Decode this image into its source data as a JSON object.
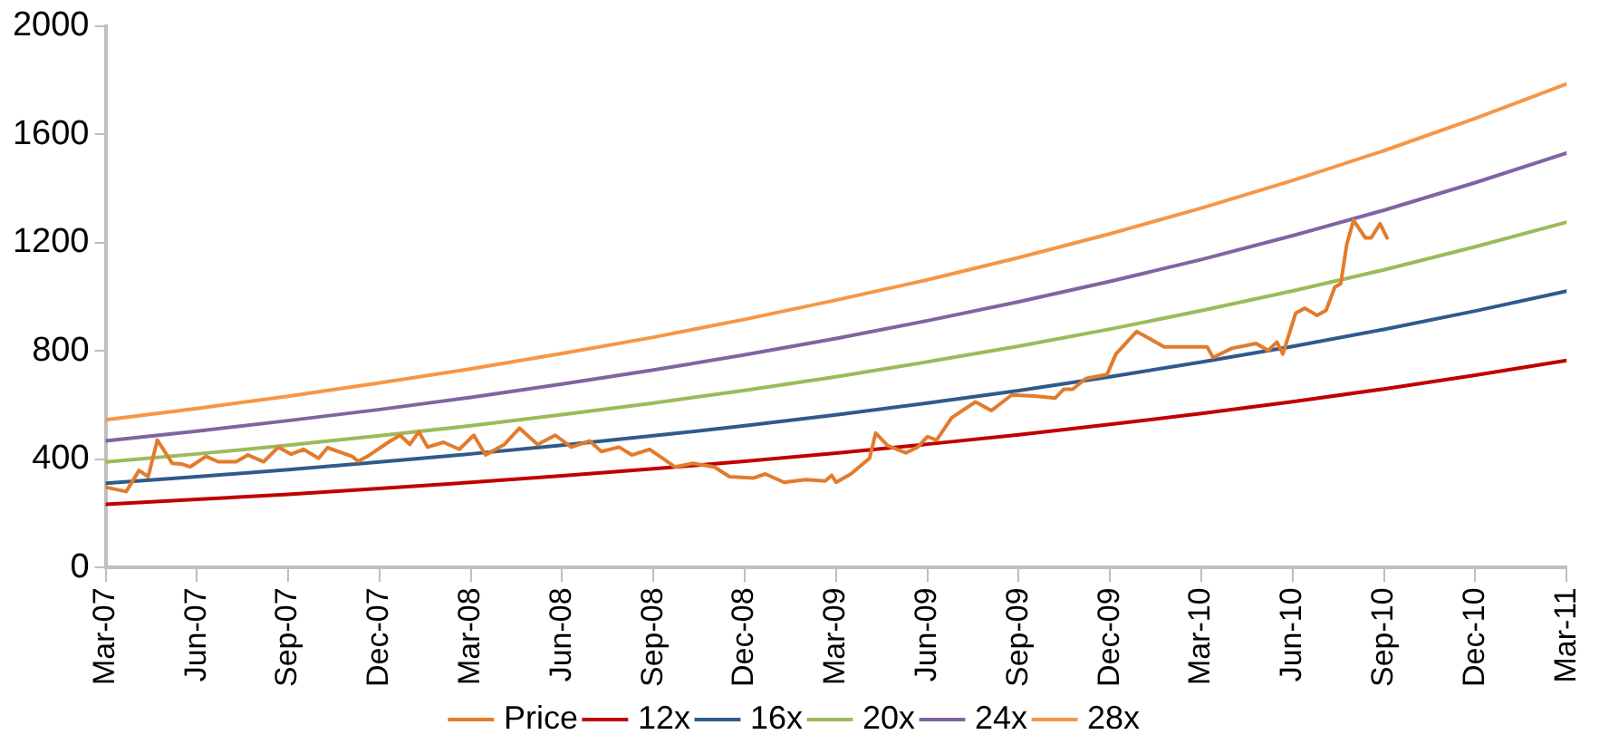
{
  "chart_data": {
    "type": "line",
    "grid": false,
    "legend": "bottom",
    "marker": "none",
    "line_style": "solid",
    "xlim": [
      "2007-03",
      "2011-03"
    ],
    "xticks": [
      {
        "value": "2007-03",
        "label": "Mar-07"
      },
      {
        "value": "2007-06",
        "label": "Jun-07"
      },
      {
        "value": "2007-09",
        "label": "Sep-07"
      },
      {
        "value": "2007-12",
        "label": "Dec-07"
      },
      {
        "value": "2008-03",
        "label": "Mar-08"
      },
      {
        "value": "2008-06",
        "label": "Jun-08"
      },
      {
        "value": "2008-09",
        "label": "Sep-08"
      },
      {
        "value": "2008-12",
        "label": "Dec-08"
      },
      {
        "value": "2009-03",
        "label": "Mar-09"
      },
      {
        "value": "2009-06",
        "label": "Jun-09"
      },
      {
        "value": "2009-09",
        "label": "Sep-09"
      },
      {
        "value": "2009-12",
        "label": "Dec-09"
      },
      {
        "value": "2010-03",
        "label": "Mar-10"
      },
      {
        "value": "2010-06",
        "label": "Jun-10"
      },
      {
        "value": "2010-09",
        "label": "Sep-10"
      },
      {
        "value": "2010-12",
        "label": "Dec-10"
      },
      {
        "value": "2011-03",
        "label": "Mar-11"
      }
    ],
    "ylim": [
      0,
      2000
    ],
    "yticks": [
      0,
      400,
      800,
      1200,
      1600,
      2000
    ],
    "x": [
      "2007-03",
      "2007-06",
      "2007-09",
      "2007-12",
      "2008-03",
      "2008-06",
      "2008-09",
      "2008-12",
      "2009-03",
      "2009-06",
      "2009-09",
      "2009-12",
      "2010-03",
      "2010-06",
      "2010-09",
      "2010-12",
      "2011-03"
    ],
    "series": [
      {
        "name": "Price",
        "color": "#e37b2c",
        "x": [
          "2007-03-01",
          "2007-03-22",
          "2007-04-04",
          "2007-04-13",
          "2007-04-22",
          "2007-05-07",
          "2007-05-16",
          "2007-05-25",
          "2007-06-10",
          "2007-06-22",
          "2007-07-10",
          "2007-07-22",
          "2007-08-07",
          "2007-08-22",
          "2007-09-04",
          "2007-09-16",
          "2007-10-01",
          "2007-10-10",
          "2007-11-04",
          "2007-11-10",
          "2007-11-19",
          "2007-12-10",
          "2007-12-22",
          "2008-01-01",
          "2008-01-10",
          "2008-01-19",
          "2008-02-04",
          "2008-02-19",
          "2008-03-04",
          "2008-03-16",
          "2008-04-04",
          "2008-04-19",
          "2008-05-07",
          "2008-05-25",
          "2008-06-10",
          "2008-06-28",
          "2008-07-10",
          "2008-07-28",
          "2008-08-10",
          "2008-08-28",
          "2008-09-10",
          "2008-09-22",
          "2008-10-10",
          "2008-11-01",
          "2008-11-16",
          "2008-12-10",
          "2008-12-22",
          "2009-01-10",
          "2009-02-01",
          "2009-02-19",
          "2009-02-25",
          "2009-03-01",
          "2009-03-16",
          "2009-04-04",
          "2009-04-10",
          "2009-04-22",
          "2009-05-10",
          "2009-05-22",
          "2009-06-01",
          "2009-06-10",
          "2009-06-25",
          "2009-07-19",
          "2009-08-04",
          "2009-08-25",
          "2009-09-19",
          "2009-10-07",
          "2009-10-16",
          "2009-10-25",
          "2009-11-07",
          "2009-11-28",
          "2009-12-07",
          "2009-12-28",
          "2010-01-10",
          "2010-01-25",
          "2010-03-07",
          "2010-03-13",
          "2010-04-01",
          "2010-04-25",
          "2010-05-07",
          "2010-05-16",
          "2010-05-22",
          "2010-06-04",
          "2010-06-13",
          "2010-06-25",
          "2010-07-04",
          "2010-07-13",
          "2010-07-19",
          "2010-07-25",
          "2010-08-01",
          "2010-08-13",
          "2010-08-19",
          "2010-08-28",
          "2010-09-04"
        ],
        "values": [
          297,
          281,
          359,
          336,
          471,
          385,
          383,
          372,
          411,
          391,
          391,
          416,
          391,
          445,
          419,
          437,
          404,
          443,
          411,
          393,
          411,
          463,
          489,
          455,
          502,
          445,
          463,
          437,
          489,
          416,
          455,
          515,
          455,
          489,
          445,
          468,
          429,
          445,
          416,
          437,
          404,
          372,
          385,
          372,
          336,
          331,
          346,
          315,
          325,
          320,
          341,
          315,
          346,
          404,
          497,
          450,
          424,
          445,
          484,
          471,
          554,
          612,
          580,
          638,
          633,
          626,
          659,
          659,
          698,
          713,
          789,
          872,
          846,
          815,
          815,
          776,
          810,
          828,
          802,
          833,
          789,
          940,
          958,
          932,
          950,
          1036,
          1049,
          1192,
          1283,
          1218,
          1218,
          1270,
          1218
        ]
      },
      {
        "name": "12x",
        "color": "#c00000",
        "values": [
          234,
          252,
          271,
          292,
          315,
          339,
          365,
          393,
          423,
          456,
          491,
          529,
          569,
          613,
          660,
          711,
          765
        ]
      },
      {
        "name": "16x",
        "color": "#2e5b8c",
        "values": [
          312,
          336,
          362,
          390,
          420,
          452,
          487,
          524,
          564,
          608,
          654,
          705,
          759,
          817,
          880,
          948,
          1021
        ]
      },
      {
        "name": "20x",
        "color": "#9bbb59",
        "values": [
          390,
          420,
          452,
          487,
          524,
          565,
          608,
          655,
          705,
          760,
          818,
          881,
          949,
          1022,
          1100,
          1185,
          1276
        ]
      },
      {
        "name": "24x",
        "color": "#8064a2",
        "values": [
          468,
          504,
          543,
          584,
          629,
          678,
          730,
          786,
          846,
          912,
          982,
          1057,
          1138,
          1226,
          1320,
          1422,
          1531
        ]
      },
      {
        "name": "28x",
        "color": "#f79646",
        "values": [
          546,
          588,
          633,
          682,
          734,
          791,
          851,
          917,
          988,
          1063,
          1145,
          1233,
          1328,
          1430,
          1540,
          1659,
          1786
        ]
      }
    ]
  }
}
